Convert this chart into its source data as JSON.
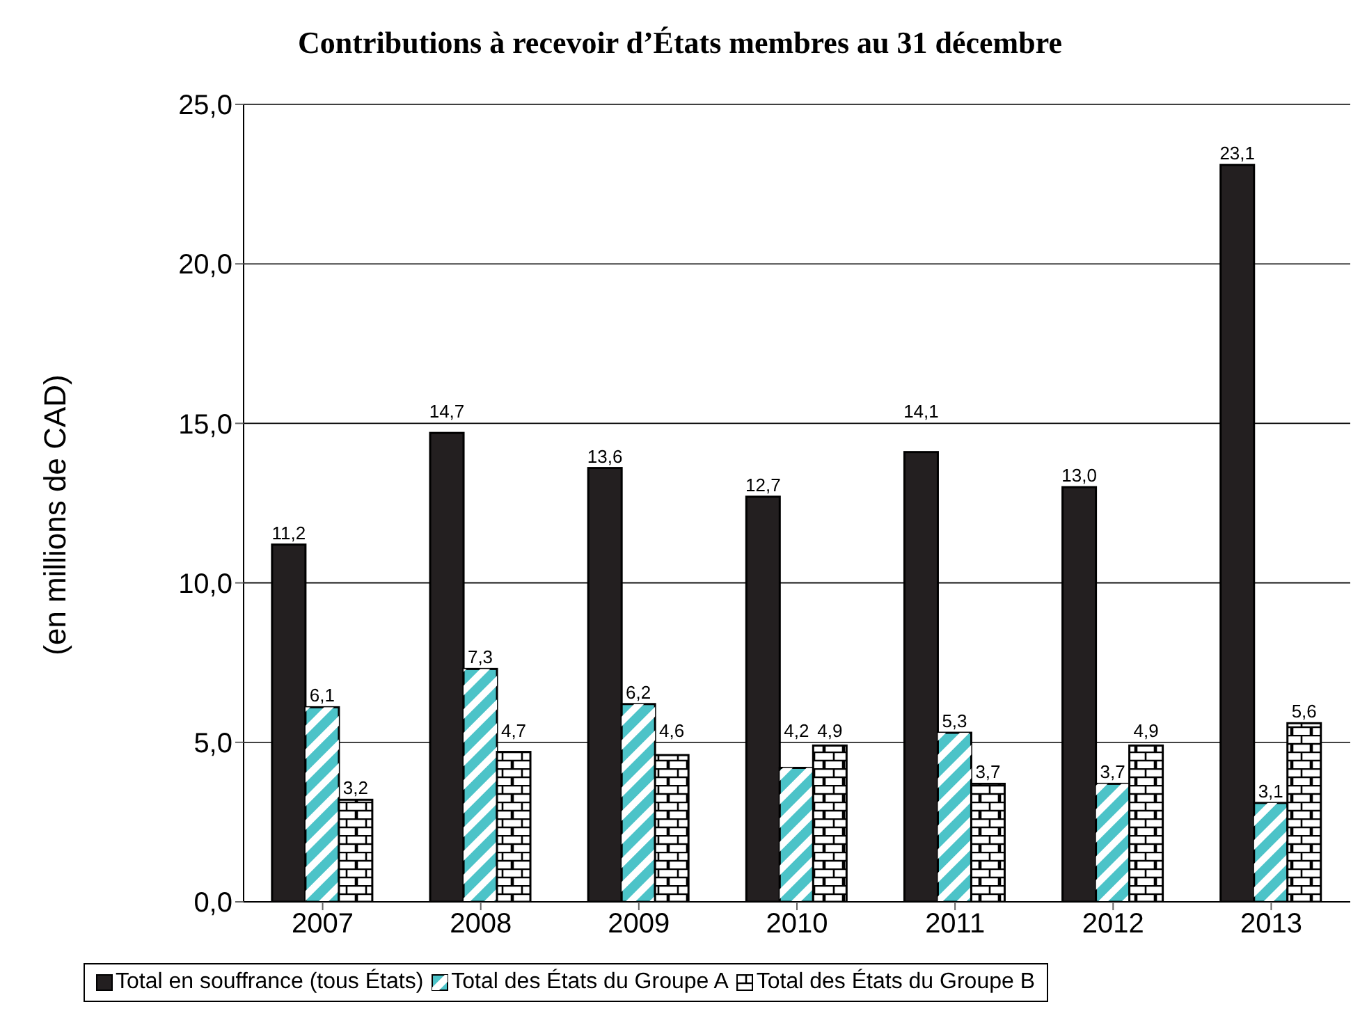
{
  "chart_data": {
    "type": "bar",
    "title": "Contributions à recevoir d’États membres au 31 décembre",
    "ylabel": "(en millions de CAD)",
    "categories": [
      "2007",
      "2008",
      "2009",
      "2010",
      "2011",
      "2012",
      "2013"
    ],
    "series": [
      {
        "name": "Total en souffrance (tous États)",
        "color": "#231f20",
        "values": [
          11.2,
          14.7,
          13.6,
          12.7,
          14.1,
          13.0,
          23.1
        ],
        "value_labels": [
          "11,2",
          "14,7",
          "13,6",
          "12,7",
          "14,1",
          "13,0",
          "23,1"
        ]
      },
      {
        "name": "Total des États du Groupe A",
        "color": "#4cc3c8",
        "values": [
          6.1,
          7.3,
          6.2,
          4.2,
          5.3,
          3.7,
          3.1
        ],
        "value_labels": [
          "6,1",
          "7,3",
          "6,2",
          "4,2",
          "5,3",
          "3,7",
          "3,1"
        ]
      },
      {
        "name": "Total des États du Groupe B",
        "color": "#ffffff",
        "values": [
          3.2,
          4.7,
          4.6,
          4.9,
          3.7,
          4.9,
          5.6
        ],
        "value_labels": [
          "3,2",
          "4,7",
          "4,6",
          "4,9",
          "3,7",
          "4,9",
          "5,6"
        ]
      }
    ],
    "ylim": [
      0,
      25
    ],
    "yticks": [
      {
        "value": 0,
        "label": "0,0"
      },
      {
        "value": 5,
        "label": "5,0"
      },
      {
        "value": 10,
        "label": "10,0"
      },
      {
        "value": 15,
        "label": "15,0"
      },
      {
        "value": 20,
        "label": "20,0"
      },
      {
        "value": 25,
        "label": "25,0"
      }
    ],
    "grid": "y",
    "legend": "bottom"
  }
}
